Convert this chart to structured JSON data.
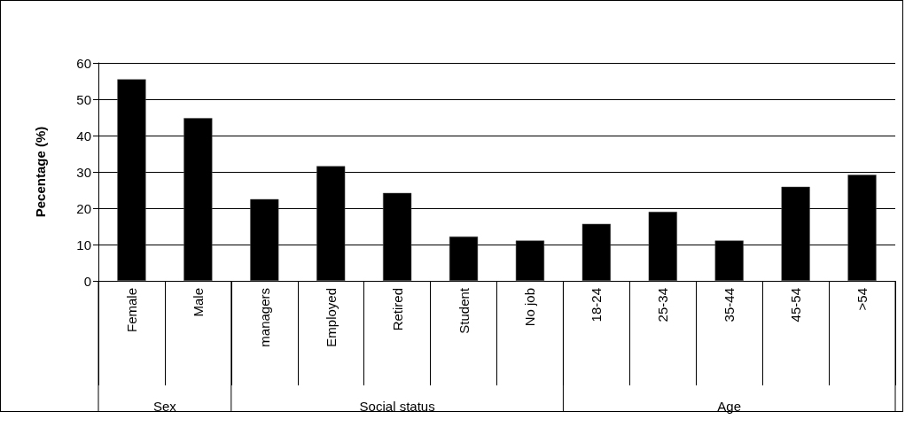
{
  "chart_data": {
    "type": "bar",
    "ylabel": "Pecentage (%)",
    "categories": [
      "Female",
      "Male",
      "managers",
      "Employed",
      "Retired",
      "Student",
      "No job",
      "18-24",
      "25-34",
      "35-44",
      "45-54",
      ">54"
    ],
    "values": [
      55.5,
      44.8,
      22.5,
      31.6,
      24.2,
      12.2,
      11.1,
      15.7,
      19.0,
      11.1,
      25.9,
      29.2
    ],
    "color": "#000000",
    "ylim": [
      0,
      60
    ],
    "yticks": [
      0,
      10,
      20,
      30,
      40,
      50,
      60
    ],
    "grid": "y",
    "annotations": [
      "Sex",
      "Social status",
      "Age"
    ]
  }
}
